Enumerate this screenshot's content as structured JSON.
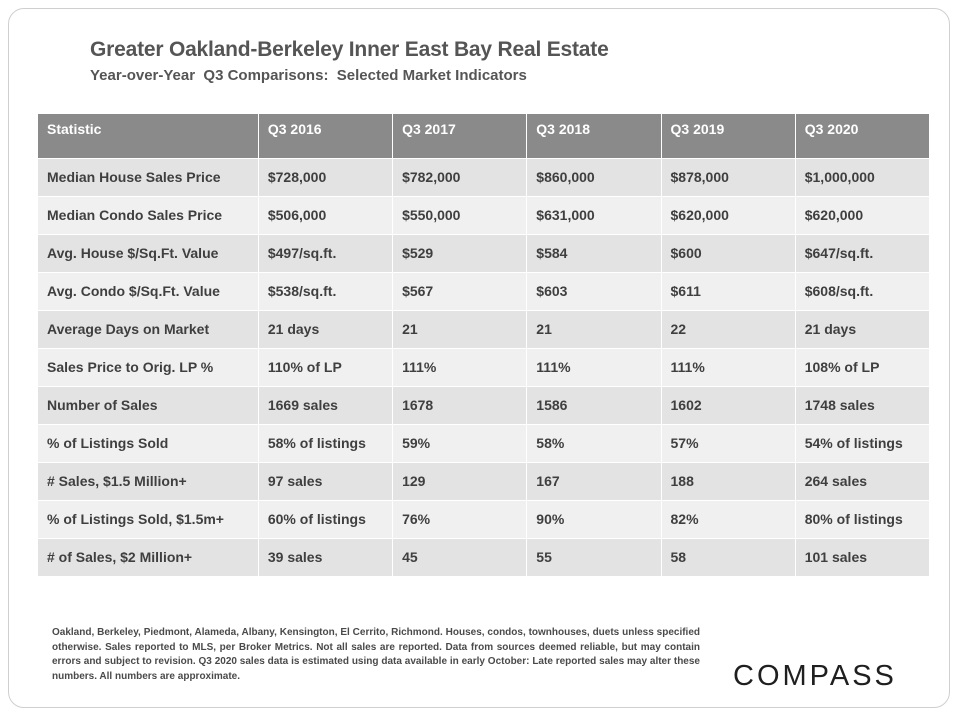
{
  "header": {
    "title": "Greater Oakland-Berkeley Inner East Bay Real Estate",
    "subtitle": "Year-over-Year  Q3 Comparisons:  Selected Market Indicators"
  },
  "table": {
    "columns": [
      "Statistic",
      "Q3 2016",
      "Q3 2017",
      "Q3 2018",
      "Q3 2019",
      "Q3 2020"
    ],
    "rows": [
      [
        "Median House Sales Price",
        "$728,000",
        "$782,000",
        "$860,000",
        "$878,000",
        "$1,000,000"
      ],
      [
        "Median Condo Sales Price",
        "$506,000",
        "$550,000",
        "$631,000",
        "$620,000",
        "$620,000"
      ],
      [
        "Avg. House $/Sq.Ft. Value",
        "$497/sq.ft.",
        "$529",
        "$584",
        "$600",
        "$647/sq.ft."
      ],
      [
        "Avg. Condo $/Sq.Ft. Value",
        "$538/sq.ft.",
        "$567",
        "$603",
        "$611",
        "$608/sq.ft."
      ],
      [
        "Average Days on Market",
        "21 days",
        "21",
        "21",
        "22",
        "21 days"
      ],
      [
        "Sales Price to Orig. LP %",
        "110% of LP",
        "111%",
        "111%",
        "111%",
        "108% of LP"
      ],
      [
        "Number of Sales",
        "1669 sales",
        "1678",
        "1586",
        "1602",
        "1748 sales"
      ],
      [
        "% of Listings Sold",
        "58% of listings",
        "59%",
        "58%",
        "57%",
        "54% of listings"
      ],
      [
        "# Sales, $1.5 Million+",
        "97 sales",
        "129",
        "167",
        "188",
        "264 sales"
      ],
      [
        "% of Listings Sold, $1.5m+",
        "60% of listings",
        "76%",
        "90%",
        "82%",
        "80% of listings"
      ],
      [
        "# of Sales, $2 Million+",
        "39 sales",
        "45",
        "55",
        "58",
        "101 sales"
      ]
    ]
  },
  "footnote": "Oakland, Berkeley, Piedmont, Alameda, Albany, Kensington, El Cerrito, Richmond. Houses, condos, townhouses, duets unless specified otherwise. Sales reported to MLS, per Broker Metrics. Not all sales are reported. Data from sources deemed reliable, but may contain errors and subject to revision. Q3 2020 sales data is estimated using data available  in early October: Late reported sales may alter these numbers. All numbers are approximate.",
  "logo": "COMPASS",
  "colors": {
    "header_bg": "#8a8a8a",
    "row_odd": "#e3e3e3",
    "row_even": "#f0f0f0",
    "text": "#3f3f3f"
  }
}
